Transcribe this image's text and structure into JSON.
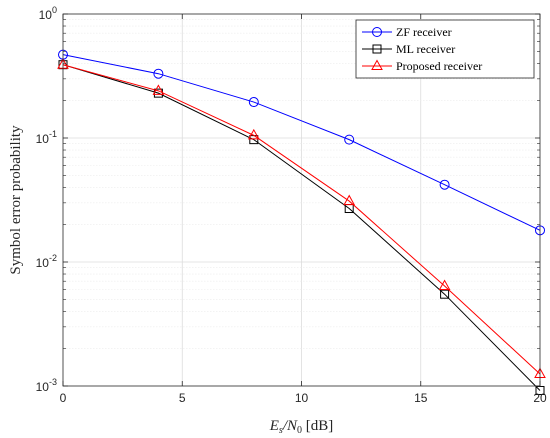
{
  "chart_data": {
    "type": "line",
    "title": "",
    "xlabel": "E_s/N_0 [dB]",
    "xlabel_parts": {
      "main": "E",
      "sub1": "s",
      "mid": "/N",
      "sub2": "0",
      "unit": " [dB]"
    },
    "ylabel": "Symbol error probability",
    "xlim": [
      0,
      20
    ],
    "ylim": [
      0.001,
      1
    ],
    "yscale": "log",
    "x_ticks": [
      0,
      5,
      10,
      15,
      20
    ],
    "x_tick_labels": [
      "0",
      "5",
      "10",
      "15",
      "20"
    ],
    "y_ticks": [
      {
        "base": "10",
        "exp": "0",
        "value": 1
      },
      {
        "base": "10",
        "exp": "-1",
        "value": 0.1
      },
      {
        "base": "10",
        "exp": "-2",
        "value": 0.01
      },
      {
        "base": "10",
        "exp": "-3",
        "value": 0.001
      }
    ],
    "grid": true,
    "legend_position": "top-right",
    "x": [
      0,
      4,
      8,
      12,
      16,
      20
    ],
    "series": [
      {
        "name": "ZF receiver",
        "color": "#0000ff",
        "marker": "circle",
        "values": [
          0.47,
          0.33,
          0.195,
          0.097,
          0.042,
          0.018
        ]
      },
      {
        "name": "ML receiver",
        "color": "#000000",
        "marker": "square",
        "values": [
          0.39,
          0.23,
          0.097,
          0.027,
          0.0055,
          0.00092
        ]
      },
      {
        "name": "Proposed receiver",
        "color": "#ff0000",
        "marker": "triangle",
        "values": [
          0.39,
          0.24,
          0.105,
          0.031,
          0.0064,
          0.00125
        ]
      }
    ]
  }
}
